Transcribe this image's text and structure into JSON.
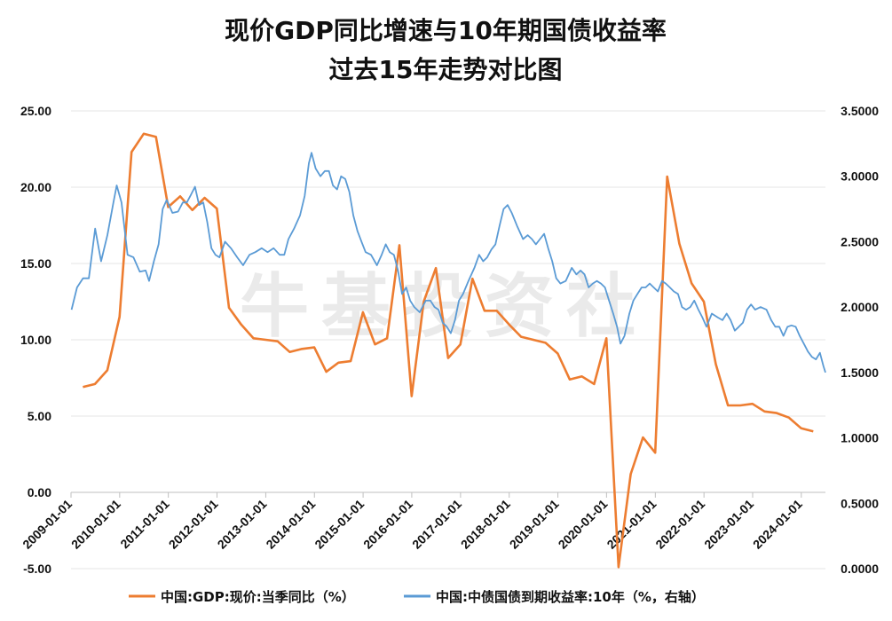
{
  "chart_data": {
    "type": "line",
    "title": [
      "现价GDP同比增速与10年期国债收益率",
      "过去15年走势对比图"
    ],
    "watermark": "牛基投资社",
    "y_left": {
      "ticks": [
        "25.00",
        "20.00",
        "15.00",
        "10.00",
        "5.00",
        "0.00",
        "-5.00"
      ],
      "ylim": [
        -5,
        25
      ]
    },
    "y_right": {
      "ticks": [
        "3.5000",
        "3.0000",
        "2.5000",
        "2.0000",
        "1.5000",
        "1.0000",
        "0.5000",
        "0.0000"
      ],
      "ylim": [
        0,
        3.5
      ]
    },
    "x_ticks": [
      "2009-01-01",
      "2010-01-01",
      "2011-01-01",
      "2012-01-01",
      "2013-01-01",
      "2014-01-01",
      "2015-01-01",
      "2016-01-01",
      "2017-01-01",
      "2018-01-01",
      "2019-01-01",
      "2020-01-01",
      "2021-01-01",
      "2022-01-01",
      "2023-01-01",
      "2024-01-01"
    ],
    "x_range": [
      "2009-01-01",
      "2024-06-30"
    ],
    "grid": true,
    "legend_position": "bottom",
    "series": [
      {
        "name": "中国:GDP:现价:当季同比（%）",
        "color": "#ED7D31",
        "axis": "left",
        "points": [
          [
            "2009-03-31",
            6.9
          ],
          [
            "2009-06-30",
            7.1
          ],
          [
            "2009-09-30",
            8.0
          ],
          [
            "2009-12-31",
            11.5
          ],
          [
            "2010-03-31",
            22.3
          ],
          [
            "2010-06-30",
            23.5
          ],
          [
            "2010-09-30",
            23.3
          ],
          [
            "2010-12-31",
            18.7
          ],
          [
            "2011-03-31",
            19.4
          ],
          [
            "2011-06-30",
            18.5
          ],
          [
            "2011-09-30",
            19.3
          ],
          [
            "2011-12-31",
            18.6
          ],
          [
            "2012-03-31",
            12.1
          ],
          [
            "2012-06-30",
            11.0
          ],
          [
            "2012-09-30",
            10.1
          ],
          [
            "2012-12-31",
            10.0
          ],
          [
            "2013-03-31",
            9.9
          ],
          [
            "2013-06-30",
            9.2
          ],
          [
            "2013-09-30",
            9.4
          ],
          [
            "2013-12-31",
            9.5
          ],
          [
            "2014-03-31",
            7.9
          ],
          [
            "2014-06-30",
            8.5
          ],
          [
            "2014-09-30",
            8.6
          ],
          [
            "2014-12-31",
            11.8
          ],
          [
            "2015-03-31",
            9.7
          ],
          [
            "2015-06-30",
            10.1
          ],
          [
            "2015-09-30",
            16.2
          ],
          [
            "2015-12-31",
            6.3
          ],
          [
            "2016-03-31",
            12.5
          ],
          [
            "2016-06-30",
            14.7
          ],
          [
            "2016-09-30",
            8.8
          ],
          [
            "2016-12-31",
            9.7
          ],
          [
            "2017-03-31",
            14.0
          ],
          [
            "2017-06-30",
            11.9
          ],
          [
            "2017-09-30",
            11.9
          ],
          [
            "2017-12-31",
            11.0
          ],
          [
            "2018-03-31",
            10.2
          ],
          [
            "2018-06-30",
            10.0
          ],
          [
            "2018-09-30",
            9.8
          ],
          [
            "2018-12-31",
            9.1
          ],
          [
            "2019-03-31",
            7.4
          ],
          [
            "2019-06-30",
            7.6
          ],
          [
            "2019-09-30",
            7.1
          ],
          [
            "2019-12-31",
            10.1
          ],
          [
            "2020-03-31",
            -4.9
          ],
          [
            "2020-06-30",
            1.2
          ],
          [
            "2020-09-30",
            3.6
          ],
          [
            "2020-12-31",
            2.6
          ],
          [
            "2021-03-31",
            20.7
          ],
          [
            "2021-06-30",
            16.3
          ],
          [
            "2021-09-30",
            13.7
          ],
          [
            "2021-12-31",
            12.5
          ],
          [
            "2022-03-31",
            8.4
          ],
          [
            "2022-06-30",
            5.7
          ],
          [
            "2022-09-30",
            5.7
          ],
          [
            "2022-12-31",
            5.8
          ],
          [
            "2023-03-31",
            5.3
          ],
          [
            "2023-06-30",
            5.2
          ],
          [
            "2023-09-30",
            4.9
          ],
          [
            "2023-12-31",
            4.2
          ],
          [
            "2024-03-31",
            4.0
          ]
        ]
      },
      {
        "name": "中国:中债国债到期收益率:10年（%，右轴）",
        "color": "#5B9BD5",
        "axis": "right",
        "points": [
          [
            "2009-01-05",
            1.98
          ],
          [
            "2009-02-15",
            2.15
          ],
          [
            "2009-04-01",
            2.22
          ],
          [
            "2009-05-15",
            2.22
          ],
          [
            "2009-07-01",
            2.6
          ],
          [
            "2009-08-15",
            2.35
          ],
          [
            "2009-10-01",
            2.55
          ],
          [
            "2009-11-15",
            2.8
          ],
          [
            "2009-12-10",
            2.93
          ],
          [
            "2010-01-15",
            2.8
          ],
          [
            "2010-03-01",
            2.4
          ],
          [
            "2010-04-15",
            2.38
          ],
          [
            "2010-06-01",
            2.27
          ],
          [
            "2010-07-15",
            2.28
          ],
          [
            "2010-08-10",
            2.2
          ],
          [
            "2010-09-15",
            2.35
          ],
          [
            "2010-10-20",
            2.48
          ],
          [
            "2010-11-20",
            2.75
          ],
          [
            "2010-12-20",
            2.82
          ],
          [
            "2011-02-01",
            2.72
          ],
          [
            "2011-03-15",
            2.73
          ],
          [
            "2011-04-20",
            2.8
          ],
          [
            "2011-05-20",
            2.8
          ],
          [
            "2011-06-20",
            2.86
          ],
          [
            "2011-07-20",
            2.92
          ],
          [
            "2011-08-20",
            2.78
          ],
          [
            "2011-09-20",
            2.8
          ],
          [
            "2011-10-20",
            2.65
          ],
          [
            "2011-11-20",
            2.45
          ],
          [
            "2011-12-20",
            2.4
          ],
          [
            "2012-01-20",
            2.38
          ],
          [
            "2012-03-01",
            2.5
          ],
          [
            "2012-04-15",
            2.45
          ],
          [
            "2012-06-01",
            2.38
          ],
          [
            "2012-07-15",
            2.32
          ],
          [
            "2012-09-01",
            2.4
          ],
          [
            "2012-10-15",
            2.42
          ],
          [
            "2012-12-01",
            2.45
          ],
          [
            "2013-01-15",
            2.42
          ],
          [
            "2013-03-01",
            2.45
          ],
          [
            "2013-04-15",
            2.4
          ],
          [
            "2013-05-20",
            2.4
          ],
          [
            "2013-06-20",
            2.52
          ],
          [
            "2013-08-01",
            2.6
          ],
          [
            "2013-09-15",
            2.7
          ],
          [
            "2013-10-20",
            2.85
          ],
          [
            "2013-11-20",
            3.1
          ],
          [
            "2013-12-10",
            3.18
          ],
          [
            "2014-01-10",
            3.06
          ],
          [
            "2014-02-15",
            3.0
          ],
          [
            "2014-03-20",
            3.04
          ],
          [
            "2014-04-20",
            3.04
          ],
          [
            "2014-05-20",
            2.93
          ],
          [
            "2014-06-20",
            2.9
          ],
          [
            "2014-07-20",
            3.0
          ],
          [
            "2014-08-20",
            2.98
          ],
          [
            "2014-09-20",
            2.88
          ],
          [
            "2014-10-20",
            2.7
          ],
          [
            "2014-11-20",
            2.58
          ],
          [
            "2014-12-20",
            2.5
          ],
          [
            "2015-01-20",
            2.42
          ],
          [
            "2015-03-01",
            2.4
          ],
          [
            "2015-04-15",
            2.32
          ],
          [
            "2015-05-20",
            2.4
          ],
          [
            "2015-06-20",
            2.48
          ],
          [
            "2015-07-20",
            2.42
          ],
          [
            "2015-08-20",
            2.4
          ],
          [
            "2015-09-20",
            2.28
          ],
          [
            "2015-10-20",
            2.1
          ],
          [
            "2015-11-20",
            2.15
          ],
          [
            "2015-12-20",
            2.05
          ],
          [
            "2016-01-20",
            2.0
          ],
          [
            "2016-03-01",
            1.96
          ],
          [
            "2016-04-15",
            2.05
          ],
          [
            "2016-05-20",
            2.05
          ],
          [
            "2016-06-20",
            2.0
          ],
          [
            "2016-07-20",
            1.98
          ],
          [
            "2016-08-20",
            1.88
          ],
          [
            "2016-09-20",
            1.85
          ],
          [
            "2016-10-20",
            1.8
          ],
          [
            "2016-11-20",
            1.9
          ],
          [
            "2016-12-20",
            2.05
          ],
          [
            "2017-01-20",
            2.1
          ],
          [
            "2017-03-01",
            2.2
          ],
          [
            "2017-04-15",
            2.3
          ],
          [
            "2017-05-20",
            2.4
          ],
          [
            "2017-06-20",
            2.35
          ],
          [
            "2017-07-20",
            2.38
          ],
          [
            "2017-08-20",
            2.44
          ],
          [
            "2017-09-20",
            2.48
          ],
          [
            "2017-10-20",
            2.62
          ],
          [
            "2017-11-20",
            2.75
          ],
          [
            "2017-12-20",
            2.78
          ],
          [
            "2018-01-20",
            2.72
          ],
          [
            "2018-03-01",
            2.62
          ],
          [
            "2018-04-15",
            2.52
          ],
          [
            "2018-05-20",
            2.55
          ],
          [
            "2018-06-20",
            2.52
          ],
          [
            "2018-07-20",
            2.48
          ],
          [
            "2018-08-20",
            2.52
          ],
          [
            "2018-09-20",
            2.56
          ],
          [
            "2018-10-20",
            2.45
          ],
          [
            "2018-11-20",
            2.35
          ],
          [
            "2018-12-20",
            2.22
          ],
          [
            "2019-01-20",
            2.18
          ],
          [
            "2019-03-01",
            2.2
          ],
          [
            "2019-04-15",
            2.3
          ],
          [
            "2019-05-20",
            2.25
          ],
          [
            "2019-06-20",
            2.28
          ],
          [
            "2019-07-20",
            2.25
          ],
          [
            "2019-08-20",
            2.15
          ],
          [
            "2019-09-20",
            2.18
          ],
          [
            "2019-10-20",
            2.2
          ],
          [
            "2019-11-20",
            2.18
          ],
          [
            "2019-12-20",
            2.15
          ],
          [
            "2020-01-20",
            2.05
          ],
          [
            "2020-02-20",
            1.95
          ],
          [
            "2020-03-20",
            1.85
          ],
          [
            "2020-04-15",
            1.72
          ],
          [
            "2020-05-15",
            1.78
          ],
          [
            "2020-06-20",
            1.95
          ],
          [
            "2020-07-20",
            2.05
          ],
          [
            "2020-08-20",
            2.1
          ],
          [
            "2020-09-20",
            2.15
          ],
          [
            "2020-10-20",
            2.15
          ],
          [
            "2020-11-20",
            2.18
          ],
          [
            "2020-12-20",
            2.15
          ],
          [
            "2021-01-20",
            2.12
          ],
          [
            "2021-02-20",
            2.2
          ],
          [
            "2021-03-20",
            2.18
          ],
          [
            "2021-04-20",
            2.15
          ],
          [
            "2021-05-20",
            2.12
          ],
          [
            "2021-06-20",
            2.1
          ],
          [
            "2021-07-20",
            2.0
          ],
          [
            "2021-08-20",
            1.98
          ],
          [
            "2021-09-20",
            2.0
          ],
          [
            "2021-10-20",
            2.05
          ],
          [
            "2021-11-20",
            1.98
          ],
          [
            "2021-12-20",
            1.92
          ],
          [
            "2022-01-20",
            1.85
          ],
          [
            "2022-03-01",
            1.95
          ],
          [
            "2022-04-15",
            1.92
          ],
          [
            "2022-05-20",
            1.9
          ],
          [
            "2022-06-20",
            1.95
          ],
          [
            "2022-07-20",
            1.9
          ],
          [
            "2022-08-20",
            1.82
          ],
          [
            "2022-09-20",
            1.85
          ],
          [
            "2022-10-20",
            1.88
          ],
          [
            "2022-11-20",
            1.98
          ],
          [
            "2022-12-20",
            2.02
          ],
          [
            "2023-01-20",
            1.98
          ],
          [
            "2023-03-01",
            2.0
          ],
          [
            "2023-04-15",
            1.98
          ],
          [
            "2023-05-20",
            1.9
          ],
          [
            "2023-06-20",
            1.85
          ],
          [
            "2023-07-20",
            1.85
          ],
          [
            "2023-08-20",
            1.78
          ],
          [
            "2023-09-20",
            1.85
          ],
          [
            "2023-10-20",
            1.86
          ],
          [
            "2023-11-20",
            1.85
          ],
          [
            "2023-12-20",
            1.78
          ],
          [
            "2024-01-20",
            1.72
          ],
          [
            "2024-02-20",
            1.66
          ],
          [
            "2024-03-20",
            1.62
          ],
          [
            "2024-04-20",
            1.6
          ],
          [
            "2024-05-20",
            1.65
          ],
          [
            "2024-06-15",
            1.55
          ],
          [
            "2024-06-30",
            1.5
          ]
        ]
      }
    ]
  }
}
